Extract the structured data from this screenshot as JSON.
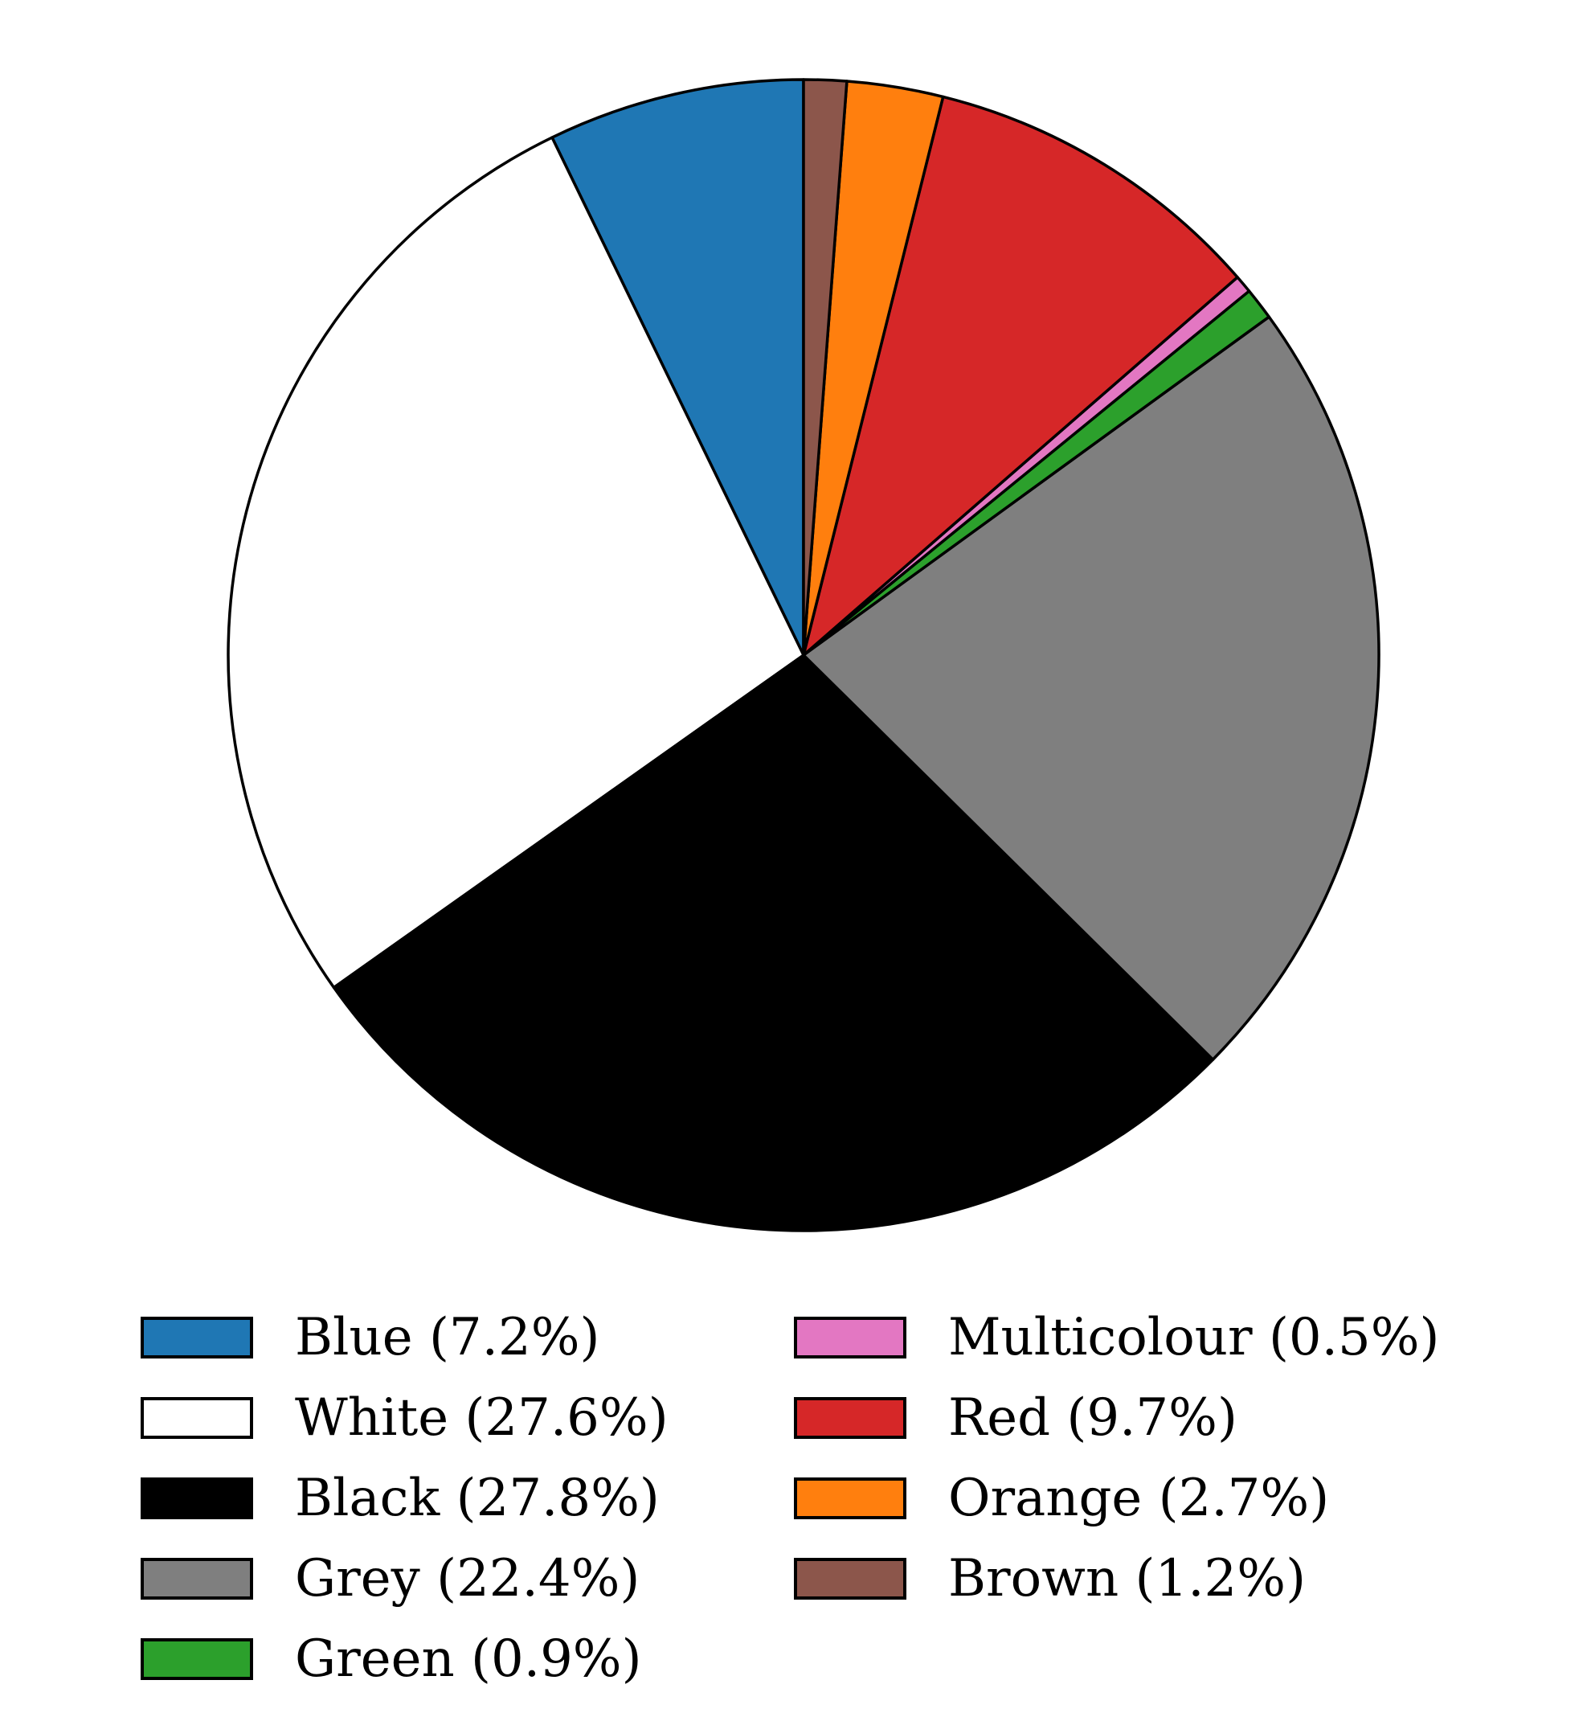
{
  "chart_data": {
    "type": "pie",
    "start_angle_deg": 90,
    "direction": "counterclockwise",
    "slices": [
      {
        "label": "Blue",
        "legend_label": "Blue (7.2%)",
        "value": 7.2,
        "color": "#1f77b4"
      },
      {
        "label": "White",
        "legend_label": "White (27.6%)",
        "value": 27.6,
        "color": "#ffffff"
      },
      {
        "label": "Black",
        "legend_label": "Black (27.8%)",
        "value": 27.8,
        "color": "#000000"
      },
      {
        "label": "Grey",
        "legend_label": "Grey (22.4%)",
        "value": 22.4,
        "color": "#7f7f7f"
      },
      {
        "label": "Green",
        "legend_label": "Green (0.9%)",
        "value": 0.9,
        "color": "#2ca02c"
      },
      {
        "label": "Multicolour",
        "legend_label": "Multicolour (0.5%)",
        "value": 0.5,
        "color": "#e377c2"
      },
      {
        "label": "Red",
        "legend_label": "Red (9.7%)",
        "value": 9.7,
        "color": "#d62728"
      },
      {
        "label": "Orange",
        "legend_label": "Orange (2.7%)",
        "value": 2.7,
        "color": "#ff7f0e"
      },
      {
        "label": "Brown",
        "legend_label": "Brown (1.2%)",
        "value": 1.2,
        "color": "#8c564b"
      }
    ],
    "legend": {
      "placement": "bottom",
      "columns": 2
    },
    "title": "",
    "xlabel": "",
    "ylabel": ""
  }
}
